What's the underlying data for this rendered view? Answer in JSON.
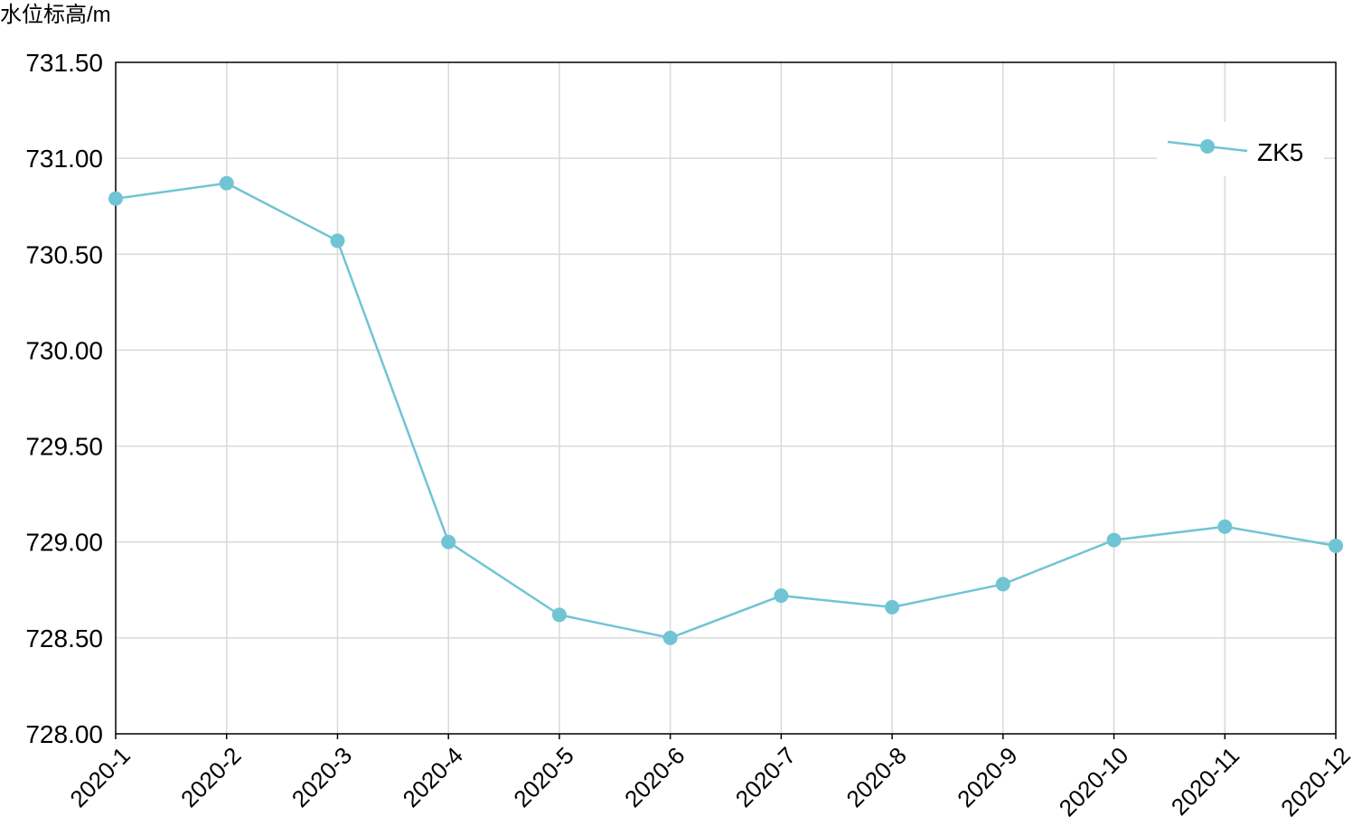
{
  "chart_data": {
    "type": "line",
    "title": "",
    "ylabel": "水位标高/m",
    "xlabel": "",
    "categories": [
      "2020-1",
      "2020-2",
      "2020-3",
      "2020-4",
      "2020-5",
      "2020-6",
      "2020-7",
      "2020-8",
      "2020-9",
      "2020-10",
      "2020-11",
      "2020-12"
    ],
    "y_tick_labels": [
      "728.00",
      "728.50",
      "729.00",
      "729.50",
      "730.00",
      "730.50",
      "731.00",
      "731.50"
    ],
    "y_ticks": [
      728.0,
      728.5,
      729.0,
      729.5,
      730.0,
      730.5,
      731.0,
      731.5
    ],
    "ylim": [
      728.0,
      731.5
    ],
    "grid": true,
    "legend_position": "top-right",
    "series": [
      {
        "name": "ZK5",
        "color": "#70c4d4",
        "marker": "circle",
        "values": [
          730.79,
          730.87,
          730.57,
          729.0,
          728.62,
          728.5,
          728.72,
          728.66,
          728.78,
          729.01,
          729.08,
          728.98
        ]
      }
    ]
  }
}
